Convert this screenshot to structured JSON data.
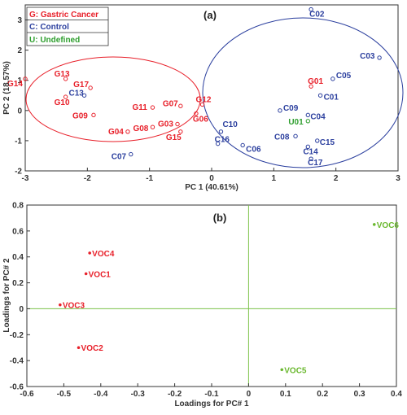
{
  "colors": {
    "gastric": "#e8202a",
    "control": "#2b3f9e",
    "undefined": "#2e9e2e",
    "voc_green": "#6ab82e",
    "ellipse_red": "#e8202a",
    "ellipse_blue": "#2b3f9e",
    "zero_line": "#7cc24a"
  },
  "chart_data": [
    {
      "type": "scatter",
      "panel_label": "(a)",
      "xlabel": "PC 1 (40.61%)",
      "ylabel": "PC 2 (18.57%)",
      "xlim": [
        -3,
        3
      ],
      "ylim": [
        -2,
        3.5
      ],
      "xticks": [
        "-3",
        "-2",
        "-1",
        "0",
        "1",
        "2",
        "3"
      ],
      "yticks": [
        "-2",
        "-1",
        "0",
        "1",
        "2",
        "3"
      ],
      "legend": {
        "placement": "top-left",
        "entries": [
          {
            "label": "G: Gastric Cancer",
            "group": "gastric"
          },
          {
            "label": "C: Control",
            "group": "control"
          },
          {
            "label": "U: Undefined",
            "group": "undefined"
          }
        ]
      },
      "points": [
        {
          "label": "G14",
          "group": "gastric",
          "x": -3.0,
          "y": 1.05
        },
        {
          "label": "G13",
          "group": "gastric",
          "x": -2.35,
          "y": 1.05
        },
        {
          "label": "G10",
          "group": "gastric",
          "x": -2.35,
          "y": 0.45
        },
        {
          "label": "C13",
          "group": "control",
          "x": -2.05,
          "y": 0.5
        },
        {
          "label": "G17",
          "group": "gastric",
          "x": -1.95,
          "y": 0.75
        },
        {
          "label": "G09",
          "group": "gastric",
          "x": -1.9,
          "y": -0.15
        },
        {
          "label": "G04",
          "group": "gastric",
          "x": -1.35,
          "y": -0.7
        },
        {
          "label": "C07",
          "group": "control",
          "x": -1.3,
          "y": -1.45
        },
        {
          "label": "G08",
          "group": "gastric",
          "x": -0.95,
          "y": -0.55
        },
        {
          "label": "G11",
          "group": "gastric",
          "x": -0.95,
          "y": 0.1
        },
        {
          "label": "G03",
          "group": "gastric",
          "x": -0.55,
          "y": -0.45
        },
        {
          "label": "G07",
          "group": "gastric",
          "x": -0.5,
          "y": 0.15
        },
        {
          "label": "G12",
          "group": "gastric",
          "x": -0.15,
          "y": 0.2
        },
        {
          "label": "G06",
          "group": "gastric",
          "x": -0.25,
          "y": -0.1
        },
        {
          "label": "G15",
          "group": "gastric",
          "x": -0.5,
          "y": -0.7
        },
        {
          "label": "C10",
          "group": "control",
          "x": 0.15,
          "y": -0.7
        },
        {
          "label": "C16",
          "group": "control",
          "x": 0.1,
          "y": -1.1
        },
        {
          "label": "C06",
          "group": "control",
          "x": 0.5,
          "y": -1.15
        },
        {
          "label": "C09",
          "group": "control",
          "x": 1.1,
          "y": 0.0
        },
        {
          "label": "U01",
          "group": "undefined",
          "x": 1.55,
          "y": -0.35
        },
        {
          "label": "C08",
          "group": "control",
          "x": 1.35,
          "y": -0.85
        },
        {
          "label": "C14",
          "group": "control",
          "x": 1.55,
          "y": -1.2
        },
        {
          "label": "C15",
          "group": "control",
          "x": 1.7,
          "y": -1.0
        },
        {
          "label": "C17",
          "group": "control",
          "x": 1.6,
          "y": -1.6
        },
        {
          "label": "C04",
          "group": "control",
          "x": 1.55,
          "y": -0.15
        },
        {
          "label": "G01",
          "group": "gastric",
          "x": 1.6,
          "y": 0.8
        },
        {
          "label": "C01",
          "group": "control",
          "x": 1.75,
          "y": 0.5
        },
        {
          "label": "C05",
          "group": "control",
          "x": 1.95,
          "y": 1.05
        },
        {
          "label": "C02",
          "group": "control",
          "x": 1.6,
          "y": 3.35
        },
        {
          "label": "C03",
          "group": "control",
          "x": 2.7,
          "y": 1.75
        }
      ]
    },
    {
      "type": "scatter",
      "panel_label": "(b)",
      "xlabel": "Loadings for PC# 1",
      "ylabel": "Loadings for PC# 2",
      "xlim": [
        -0.6,
        0.4
      ],
      "ylim": [
        -0.6,
        0.8
      ],
      "xticks": [
        "-0.6",
        "-0.5",
        "-0.4",
        "-0.3",
        "-0.2",
        "-0.1",
        "0",
        "0.1",
        "0.2",
        "0.3",
        "0.4"
      ],
      "yticks": [
        "-0.6",
        "-0.4",
        "-0.2",
        "0",
        "0.2",
        "0.4",
        "0.6",
        "0.8"
      ],
      "points": [
        {
          "label": "VOC4",
          "group": "gastric",
          "x": -0.43,
          "y": 0.43
        },
        {
          "label": "VOC1",
          "group": "gastric",
          "x": -0.44,
          "y": 0.27
        },
        {
          "label": "VOC3",
          "group": "gastric",
          "x": -0.51,
          "y": 0.03
        },
        {
          "label": "VOC2",
          "group": "gastric",
          "x": -0.46,
          "y": -0.3
        },
        {
          "label": "VOC5",
          "group": "voc_green",
          "x": 0.09,
          "y": -0.47
        },
        {
          "label": "VOC6",
          "group": "voc_green",
          "x": 0.34,
          "y": 0.65
        }
      ]
    }
  ]
}
